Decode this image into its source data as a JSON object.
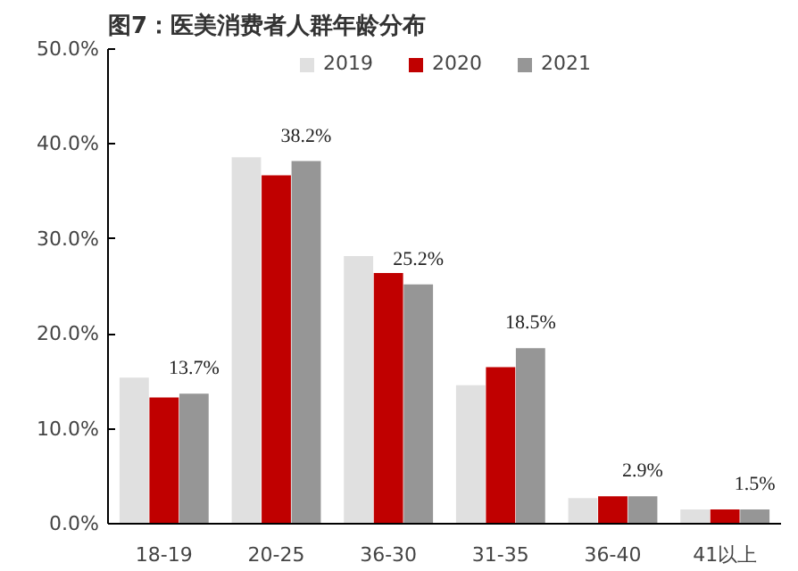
{
  "chart_data": {
    "type": "bar",
    "title": "图7：医美消费者人群年龄分布",
    "categories": [
      "18-19",
      "20-25",
      "36-30",
      "31-35",
      "36-40",
      "41以上"
    ],
    "series": [
      {
        "name": "2019",
        "color": "#e0e0e0",
        "values": [
          15.4,
          38.6,
          28.2,
          14.6,
          2.7,
          1.5
        ]
      },
      {
        "name": "2020",
        "color": "#c00000",
        "values": [
          13.3,
          36.7,
          26.4,
          16.5,
          2.9,
          1.5
        ]
      },
      {
        "name": "2021",
        "color": "#969696",
        "values": [
          13.7,
          38.2,
          25.2,
          18.5,
          2.9,
          1.5
        ],
        "value_labels": [
          "13.7%",
          "38.2%",
          "25.2%",
          "18.5%",
          "2.9%",
          "1.5%"
        ]
      }
    ],
    "ylim": [
      0,
      50
    ],
    "yticks": [
      {
        "value": 0,
        "label": "0.0%"
      },
      {
        "value": 10,
        "label": "10.0%"
      },
      {
        "value": 20,
        "label": "20.0%"
      },
      {
        "value": 30,
        "label": "30.0%"
      },
      {
        "value": 40,
        "label": "40.0%"
      },
      {
        "value": 50,
        "label": "50.0%"
      }
    ],
    "grid": false,
    "legend": "top"
  }
}
